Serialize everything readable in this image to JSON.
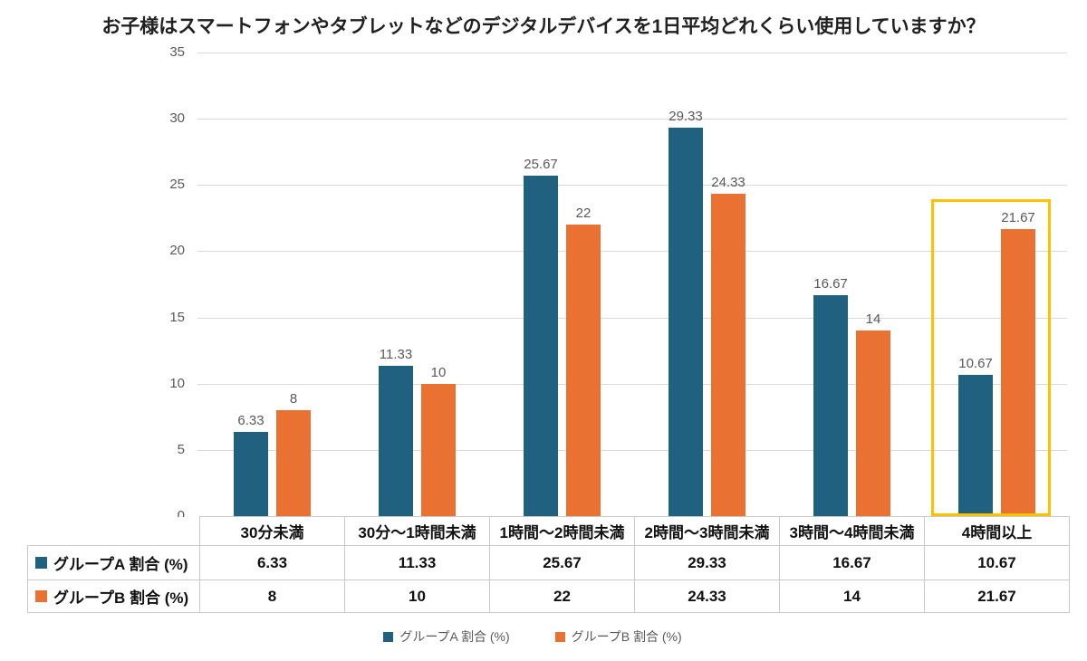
{
  "chart_data": {
    "type": "bar",
    "title": "お子様はスマートフォンやタブレットなどのデジタルデバイスを1日平均どれくらい使用していますか？",
    "categories": [
      "30分未満",
      "30分～1時間未満",
      "1時間～2時間未満",
      "2時間～3時間未満",
      "3時間～4時間未満",
      "4時間以上"
    ],
    "series": [
      {
        "name": "グループA 割合 (%)",
        "color": "#20617F",
        "values": [
          6.33,
          11.33,
          25.67,
          29.33,
          16.67,
          10.67
        ],
        "labels": [
          "6.33",
          "11.33",
          "25.67",
          "29.33",
          "16.67",
          "10.67"
        ]
      },
      {
        "name": "グループB 割合 (%)",
        "color": "#E97132",
        "values": [
          8,
          10,
          22,
          24.33,
          14,
          21.67
        ],
        "labels": [
          "8",
          "10",
          "22",
          "24.33",
          "14",
          "21.67"
        ]
      }
    ],
    "ylim": [
      0,
      35
    ],
    "y_ticks": [
      "35",
      "30",
      "25",
      "20",
      "15",
      "10",
      "5",
      "0"
    ],
    "grid": true,
    "legend_position": "bottom",
    "highlight": {
      "category": "4時間以上",
      "color": "#FFC000"
    }
  },
  "table": {
    "column_headers": [
      "30分未満",
      "30分～1時間未満",
      "1時間～2時間未満",
      "2時間～3時間未満",
      "3時間～4時間未満",
      "4時間以上"
    ],
    "row_headers": [
      "グループA 割合 (%)",
      "グループB 割合 (%)"
    ],
    "rows": [
      [
        "6.33",
        "11.33",
        "25.67",
        "29.33",
        "16.67",
        "10.67"
      ],
      [
        "8",
        "10",
        "22",
        "24.33",
        "14",
        "21.67"
      ]
    ]
  },
  "legend": {
    "items": [
      {
        "label": "グループA 割合 (%)",
        "color": "#20617F"
      },
      {
        "label": "グループB 割合 (%)",
        "color": "#E97132"
      }
    ]
  },
  "colors": {
    "group_a": "#20617F",
    "group_b": "#E97132",
    "highlight_box": "#FFC000",
    "gridline": "#D9D9D9",
    "axis_text": "#595959",
    "data_label_text": "#595959",
    "table_border": "#C9C9C9",
    "title_text": "#212121",
    "background": "#FFFFFF"
  }
}
